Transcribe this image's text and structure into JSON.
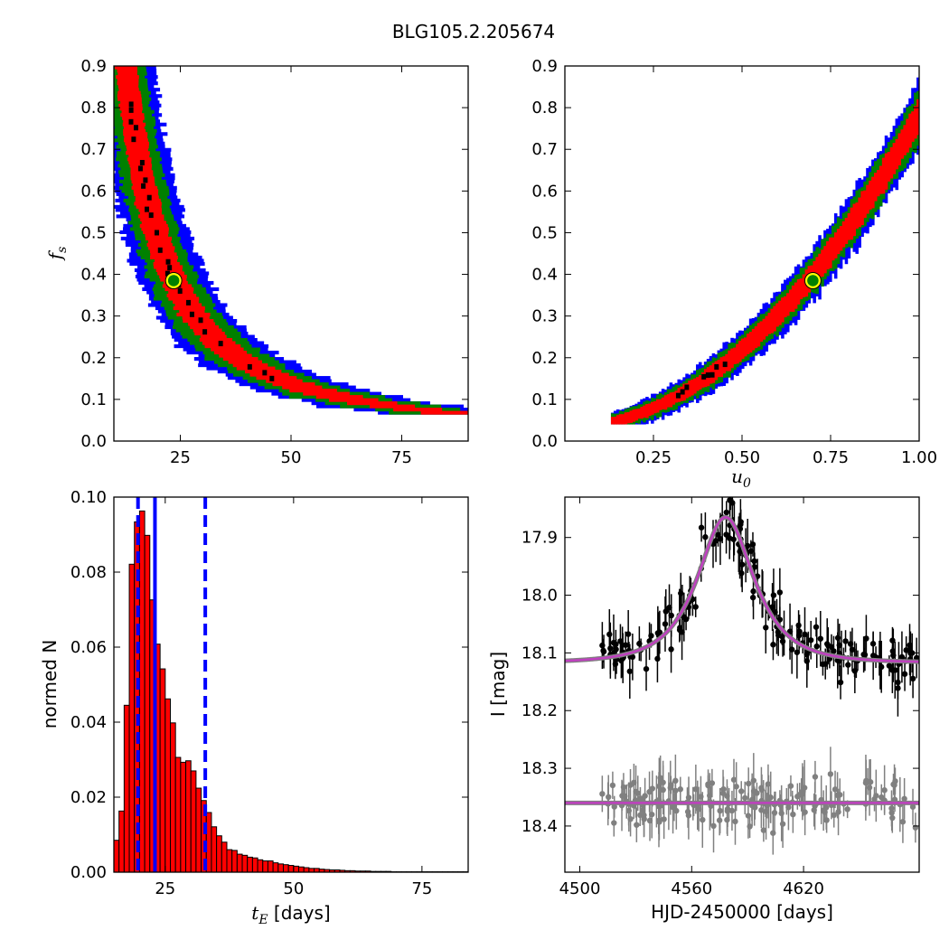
{
  "figure": {
    "suptitle": "BLG105.2.205674"
  },
  "colors": {
    "sigma1": "#ff0000",
    "sigma2": "#008000",
    "sigma3": "#0000ff",
    "peak": "#000000",
    "best_fill": "#008000",
    "best_ring_inner": "#ffff00",
    "hist_bar": "#ff0000",
    "hist_edge": "#000000",
    "hist_line": "#0000ff",
    "data_points": "#000000",
    "residual_points": "#808080",
    "model_outer": "#808080",
    "model_inner": "#bf40bf"
  },
  "chart_data": [
    {
      "panel": "top-left",
      "type": "heatmap",
      "title": "",
      "xlabel": "",
      "ylabel": "f_s",
      "xlim": [
        10,
        90
      ],
      "ylim": [
        0,
        0.9
      ],
      "xticks": [
        25,
        50,
        75
      ],
      "yticks": [
        0.0,
        0.1,
        0.2,
        0.3,
        0.4,
        0.5,
        0.6,
        0.7,
        0.8,
        0.9
      ],
      "levels": [
        "peak",
        "1-sigma",
        "2-sigma",
        "3-sigma"
      ],
      "relation": "x = 23.5 * (0.3855 / f_s)^0.72",
      "band_halfwidth_x": {
        "peak": 0.5,
        "1-sigma": 3.0,
        "2-sigma": 5.5,
        "3-sigma": 8.0
      },
      "best_fit": {
        "x": 23.5,
        "y": 0.385
      }
    },
    {
      "panel": "top-right",
      "type": "heatmap",
      "title": "",
      "xlabel": "u_0",
      "ylabel": "",
      "xlim": [
        0.0,
        1.0
      ],
      "ylim": [
        0,
        0.9
      ],
      "xticks": [
        0.25,
        0.5,
        0.75,
        1.0
      ],
      "yticks": [
        0.0,
        0.1,
        0.2,
        0.3,
        0.4,
        0.5,
        0.6,
        0.7,
        0.8,
        0.9
      ],
      "levels": [
        "peak",
        "1-sigma",
        "2-sigma",
        "3-sigma"
      ],
      "relation": "y = 0.046 + 0.2 * (x - 0.13) + 0.75 * (x - 0.13)^2",
      "band_halfwidth_y": {
        "peak": 0.004,
        "1-sigma": 0.028,
        "2-sigma": 0.045,
        "3-sigma": 0.06
      },
      "best_fit": {
        "x": 0.7,
        "y": 0.385
      }
    },
    {
      "panel": "bottom-left",
      "type": "bar",
      "title": "",
      "xlabel": "t_E [days]",
      "ylabel": "normed N",
      "xlim": [
        15,
        84
      ],
      "ylim": [
        0,
        0.1
      ],
      "xticks": [
        25,
        50,
        75
      ],
      "yticks": [
        0.0,
        0.02,
        0.04,
        0.06,
        0.08,
        0.1
      ],
      "bin_width": 1.0,
      "bin_start": 15.0,
      "values": [
        0.0085,
        0.0163,
        0.0445,
        0.0821,
        0.0934,
        0.0963,
        0.0898,
        0.0726,
        0.0608,
        0.0542,
        0.0462,
        0.0398,
        0.0306,
        0.0293,
        0.0297,
        0.027,
        0.0224,
        0.0191,
        0.0159,
        0.0121,
        0.0097,
        0.008,
        0.006,
        0.0058,
        0.0048,
        0.0045,
        0.004,
        0.0038,
        0.0033,
        0.003,
        0.003,
        0.0025,
        0.0022,
        0.002,
        0.0018,
        0.0016,
        0.0014,
        0.0012,
        0.001,
        0.001,
        0.0008,
        0.0007,
        0.0006,
        0.0006,
        0.0005,
        0.0004,
        0.0004,
        0.0003,
        0.0003,
        0.0003,
        0.0002,
        0.0002,
        0.0002,
        0.0002,
        0.0001,
        0.0001,
        0.0001,
        0.0001,
        0.0001,
        0.0001,
        0.0001,
        0.0001,
        0.0001,
        0.0001,
        0.0001,
        0.0001,
        0.0001,
        0.0001,
        0.0001
      ],
      "vlines": [
        {
          "x": 23.0,
          "style": "solid"
        },
        {
          "x": 19.7,
          "style": "dashed"
        },
        {
          "x": 32.8,
          "style": "dashed"
        }
      ]
    },
    {
      "panel": "bottom-right",
      "type": "scatter",
      "title": "",
      "xlabel": "HJD-2450000 [days]",
      "ylabel": "I [mag]",
      "xlim": [
        4492,
        4682
      ],
      "ylim": [
        18.48,
        17.83
      ],
      "y_inverted": true,
      "xticks": [
        4500,
        4560,
        4620
      ],
      "yticks": [
        17.9,
        18.0,
        18.1,
        18.2,
        18.3,
        18.4
      ],
      "model": {
        "name": "lightcurve",
        "formula": "I = 18.117 - 2.5*log10(fs*A(u) + 1 - fs), u = sqrt(u0^2 + ((t - t0)/tE)^2)",
        "t0": 4578.2,
        "tE": 23.5,
        "u0": 0.7,
        "fs": 0.385,
        "baseline": 18.117
      },
      "residual_model": {
        "name": "residual baseline",
        "y": 18.36
      },
      "data_series": {
        "name": "photometry",
        "t_range": [
          4512,
          4682
        ],
        "n_points": 170,
        "scatter": 0.022,
        "err_range": [
          0.015,
          0.05
        ]
      },
      "residual_series": {
        "name": "residuals",
        "t_range": [
          4512,
          4682
        ],
        "n_points": 170,
        "center": 18.36,
        "scatter": 0.022,
        "err_range": [
          0.015,
          0.05
        ]
      }
    }
  ]
}
